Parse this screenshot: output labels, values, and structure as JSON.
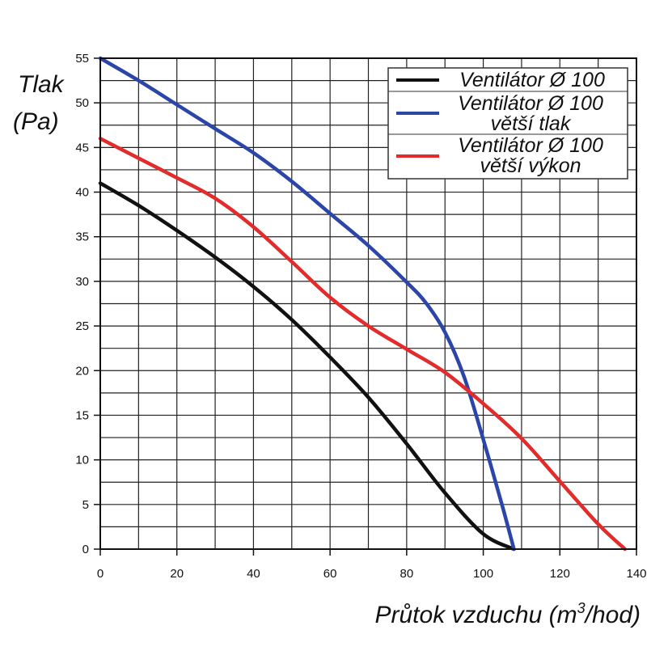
{
  "chart_data": {
    "type": "line",
    "ylabel_line1": "Tlak",
    "ylabel_line2": "(Pa)",
    "xlabel": "Průtok vzduchu (m",
    "xlabel_sup": "3",
    "xlabel_end": "/hod)",
    "xlim": [
      0,
      140
    ],
    "ylim": [
      0,
      55
    ],
    "x_ticks": [
      "0",
      "20",
      "40",
      "60",
      "80",
      "100",
      "120",
      "140"
    ],
    "y_ticks": [
      "0",
      "5",
      "10",
      "15",
      "20",
      "25",
      "30",
      "35",
      "40",
      "45",
      "50",
      "55"
    ],
    "grid": true,
    "legend_position": "top-right",
    "series": [
      {
        "name": "Ventilátor Ø 100",
        "name_lines": [
          "Ventilátor Ø 100"
        ],
        "color": "#111111",
        "x": [
          0,
          10,
          20,
          30,
          40,
          50,
          60,
          70,
          80,
          90,
          100,
          108
        ],
        "y": [
          41,
          38.5,
          35.7,
          32.7,
          29.4,
          25.7,
          21.5,
          17.0,
          11.8,
          6.3,
          1.7,
          0
        ]
      },
      {
        "name": "Ventilátor Ø 100 větší tlak",
        "name_lines": [
          "Ventilátor Ø 100",
          "větší tlak"
        ],
        "color": "#2b46a8",
        "x": [
          0,
          10,
          20,
          30,
          40,
          50,
          60,
          70,
          80,
          85,
          90,
          95,
          100,
          105,
          108
        ],
        "y": [
          55,
          52.5,
          49.8,
          47.1,
          44.4,
          41.2,
          37.6,
          34.0,
          29.9,
          27.6,
          24.3,
          19.3,
          12.3,
          4.8,
          0
        ]
      },
      {
        "name": "Ventilátor Ø 100 větší výkon",
        "name_lines": [
          "Ventilátor Ø 100",
          "větší výkon"
        ],
        "color": "#e32b2b",
        "x": [
          0,
          10,
          20,
          30,
          40,
          50,
          60,
          70,
          80,
          90,
          100,
          110,
          120,
          130,
          137
        ],
        "y": [
          46,
          43.8,
          41.6,
          39.3,
          36.1,
          32.2,
          28.2,
          25.0,
          22.4,
          19.8,
          16.3,
          12.4,
          7.6,
          2.8,
          0
        ]
      }
    ]
  }
}
